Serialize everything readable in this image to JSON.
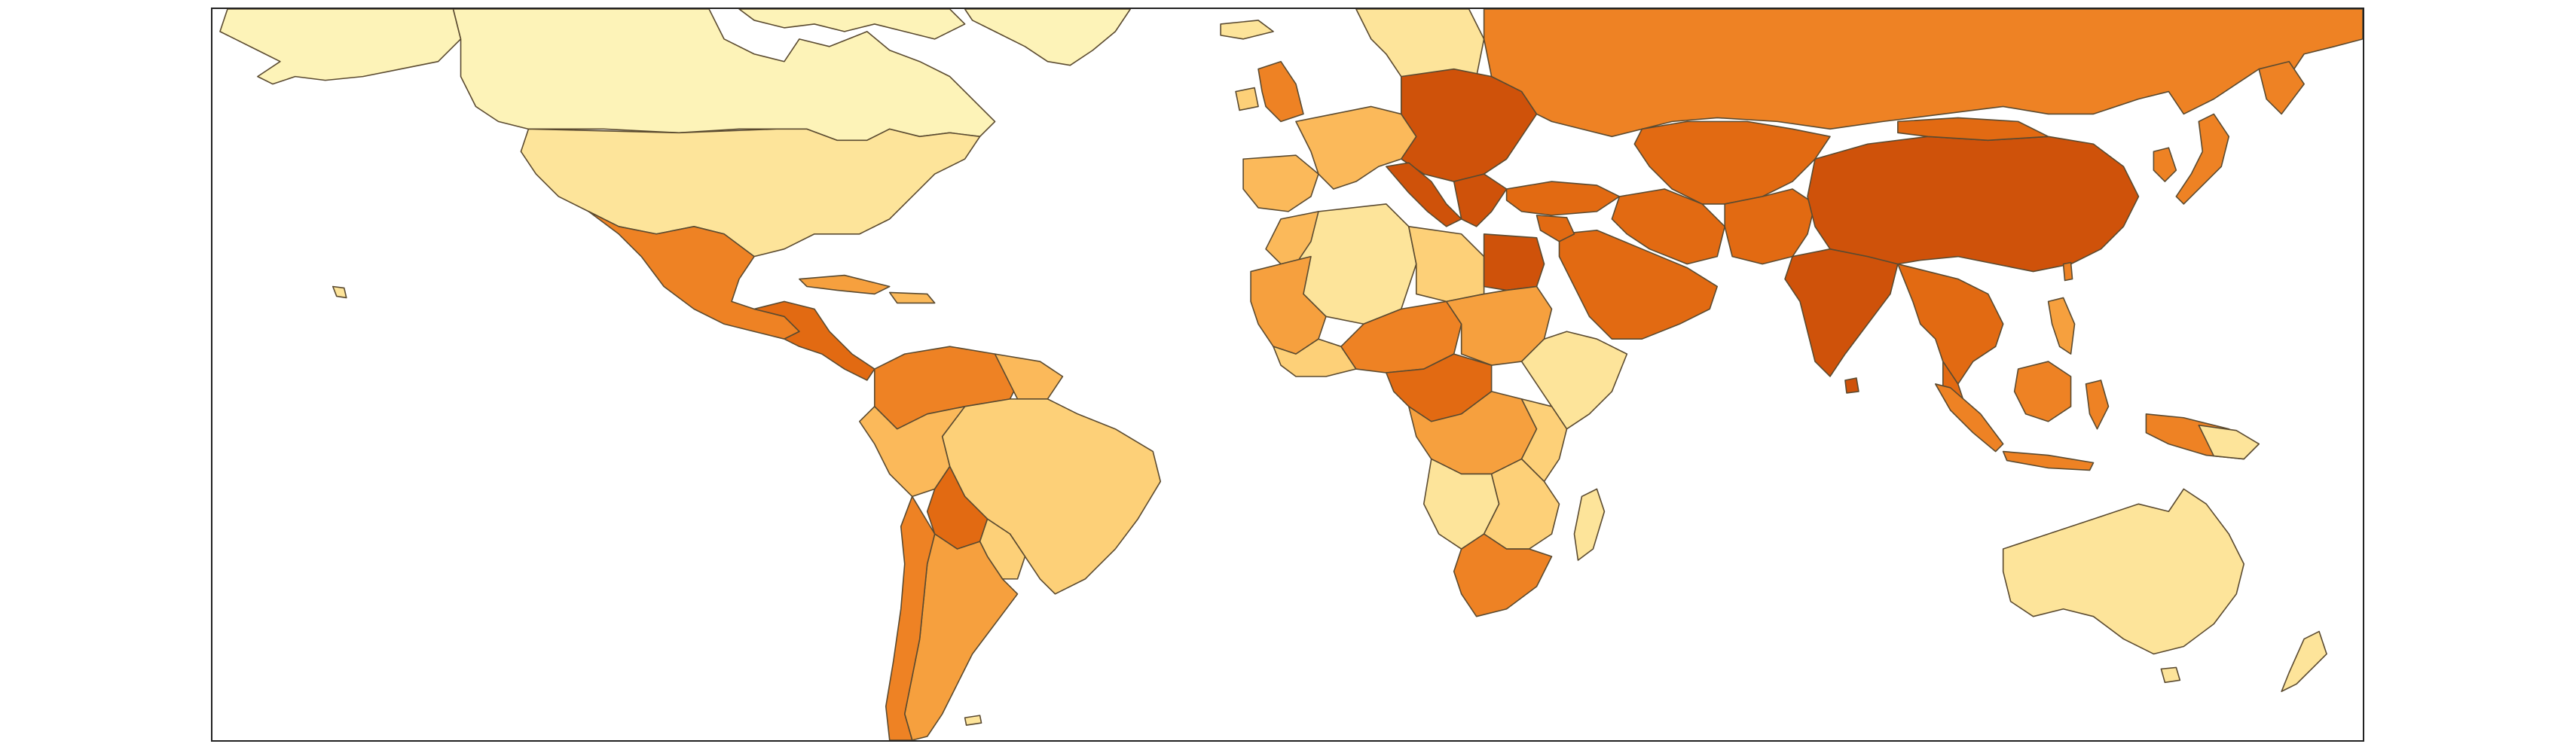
{
  "map": {
    "type": "choropleth-world-map",
    "legend": "none",
    "palette": {
      "c1": "#fdf3b8",
      "c2": "#fde49a",
      "c3": "#fdd078",
      "c4": "#fbb95a",
      "c5": "#f6a03e",
      "c6": "#ee8224",
      "c7": "#e26a12",
      "c8": "#cf520a",
      "border": "#5a4a30",
      "background": "#ffffff"
    }
  }
}
